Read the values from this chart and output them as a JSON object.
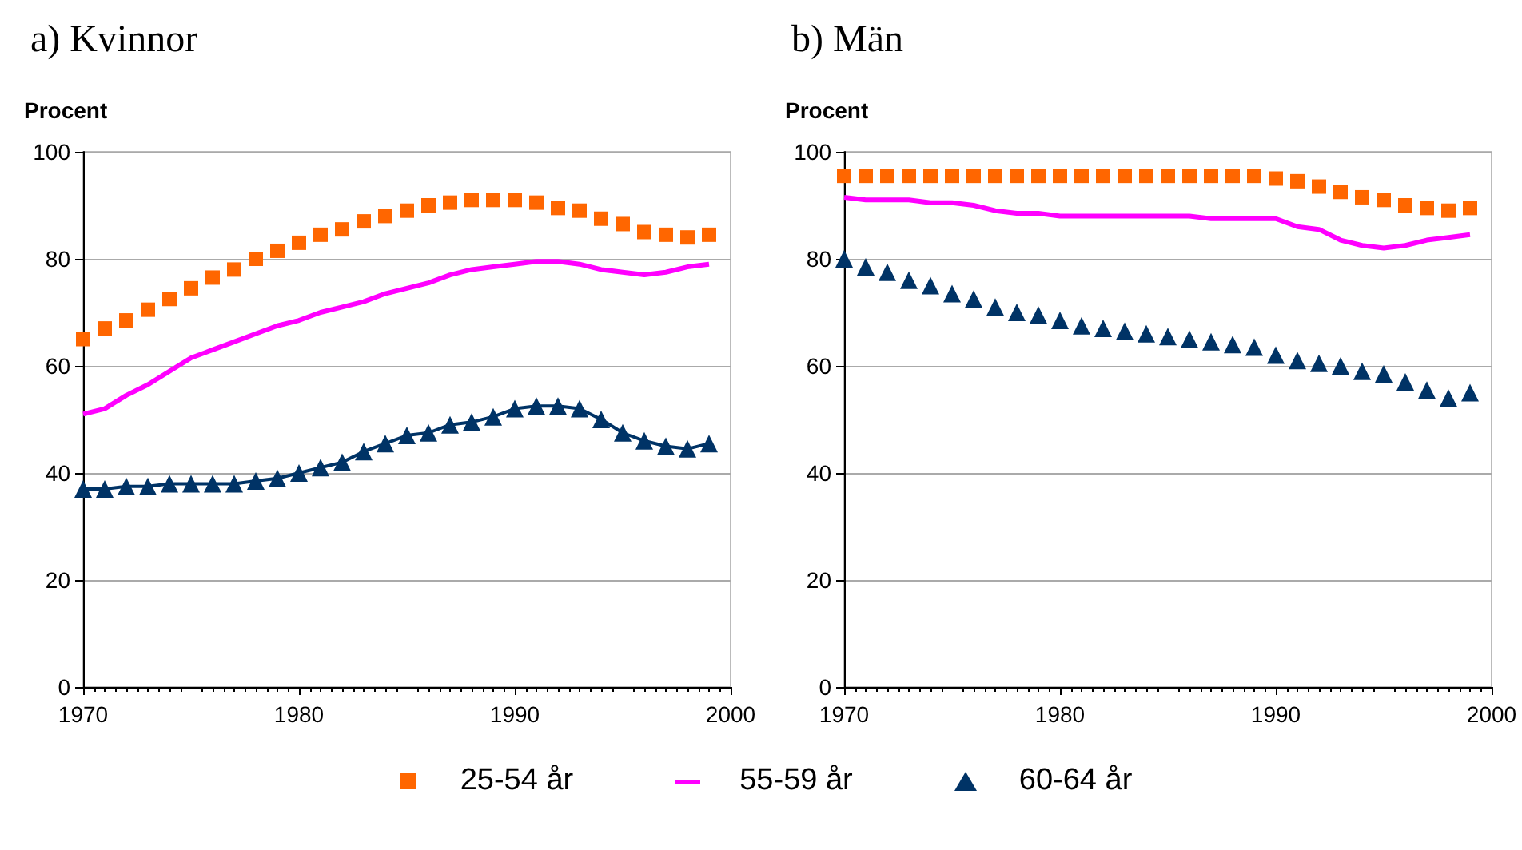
{
  "chart_data": [
    {
      "type": "line",
      "title": "a) Kvinnor",
      "ylabel": "Procent",
      "x": [
        1970,
        1971,
        1972,
        1973,
        1974,
        1975,
        1976,
        1977,
        1978,
        1979,
        1980,
        1981,
        1982,
        1983,
        1984,
        1985,
        1986,
        1987,
        1988,
        1989,
        1990,
        1991,
        1992,
        1993,
        1994,
        1995,
        1996,
        1997,
        1998,
        1999
      ],
      "xlim": [
        1970,
        2000
      ],
      "xticks": [
        1970,
        1980,
        1990,
        2000
      ],
      "ylim": [
        0,
        100
      ],
      "yticks": [
        0,
        20,
        40,
        60,
        80,
        100
      ],
      "grid": "y",
      "legend": "bottom",
      "series": [
        {
          "name": "25-54 år",
          "type": "scatter",
          "marker": "square",
          "color": "#ff6600",
          "values": [
            65,
            67,
            68.5,
            70.5,
            72.5,
            74.5,
            76.5,
            78,
            80,
            81.5,
            83,
            84.5,
            85.5,
            87,
            88,
            89,
            90,
            90.5,
            91,
            91,
            91,
            90.5,
            89.5,
            89,
            87.5,
            86.5,
            85,
            84.5,
            84,
            84.5
          ]
        },
        {
          "name": "55-59 år",
          "type": "line",
          "marker": "none",
          "color": "#ff00ff",
          "values": [
            51,
            52,
            54.5,
            56.5,
            59,
            61.5,
            63,
            64.5,
            66,
            67.5,
            68.5,
            70,
            71,
            72,
            73.5,
            74.5,
            75.5,
            77,
            78,
            78.5,
            79,
            79.5,
            79.5,
            79,
            78,
            77.5,
            77,
            77.5,
            78.5,
            79
          ]
        },
        {
          "name": "60-64 år",
          "type": "line",
          "marker": "triangle",
          "color": "#003366",
          "values": [
            37,
            37,
            37.5,
            37.5,
            38,
            38,
            38,
            38,
            38.5,
            39,
            40,
            41,
            42,
            44,
            45.5,
            47,
            47.5,
            49,
            49.5,
            50.5,
            52,
            52.5,
            52.5,
            52,
            50,
            47.5,
            46,
            45,
            44.5,
            45.5
          ]
        }
      ]
    },
    {
      "type": "line",
      "title": "b) Män",
      "ylabel": "Procent",
      "x": [
        1970,
        1971,
        1972,
        1973,
        1974,
        1975,
        1976,
        1977,
        1978,
        1979,
        1980,
        1981,
        1982,
        1983,
        1984,
        1985,
        1986,
        1987,
        1988,
        1989,
        1990,
        1991,
        1992,
        1993,
        1994,
        1995,
        1996,
        1997,
        1998,
        1999
      ],
      "xlim": [
        1970,
        2000
      ],
      "xticks": [
        1970,
        1980,
        1990,
        2000
      ],
      "ylim": [
        0,
        100
      ],
      "yticks": [
        0,
        20,
        40,
        60,
        80,
        100
      ],
      "grid": "y",
      "legend": "bottom",
      "series": [
        {
          "name": "25-54 år",
          "type": "scatter",
          "marker": "square",
          "color": "#ff6600",
          "values": [
            95.5,
            95.5,
            95.5,
            95.5,
            95.5,
            95.5,
            95.5,
            95.5,
            95.5,
            95.5,
            95.5,
            95.5,
            95.5,
            95.5,
            95.5,
            95.5,
            95.5,
            95.5,
            95.5,
            95.5,
            95,
            94.5,
            93.5,
            92.5,
            91.5,
            91,
            90,
            89.5,
            89,
            89.5
          ]
        },
        {
          "name": "55-59 år",
          "type": "line",
          "marker": "none",
          "color": "#ff00ff",
          "values": [
            91.5,
            91,
            91,
            91,
            90.5,
            90.5,
            90,
            89,
            88.5,
            88.5,
            88,
            88,
            88,
            88,
            88,
            88,
            88,
            87.5,
            87.5,
            87.5,
            87.5,
            86,
            85.5,
            83.5,
            82.5,
            82,
            82.5,
            83.5,
            84,
            84.5
          ]
        },
        {
          "name": "60-64 år",
          "type": "scatter",
          "marker": "triangle",
          "color": "#003366",
          "values": [
            80,
            78.5,
            77.5,
            76,
            75,
            73.5,
            72.5,
            71,
            70,
            69.5,
            68.5,
            67.5,
            67,
            66.5,
            66,
            65.5,
            65,
            64.5,
            64,
            63.5,
            62,
            61,
            60.5,
            60,
            59,
            58.5,
            57,
            55.5,
            54,
            55
          ]
        }
      ]
    }
  ]
}
